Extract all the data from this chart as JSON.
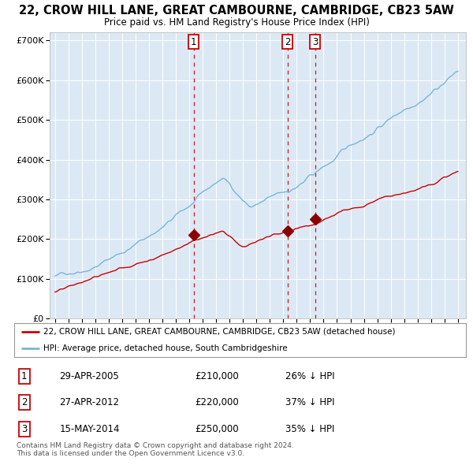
{
  "title": "22, CROW HILL LANE, GREAT CAMBOURNE, CAMBRIDGE, CB23 5AW",
  "subtitle": "Price paid vs. HM Land Registry's House Price Index (HPI)",
  "title_fontsize": 10.5,
  "subtitle_fontsize": 8.5,
  "plot_bg_color": "#dce9f5",
  "ylim": [
    0,
    720000
  ],
  "yticks": [
    0,
    100000,
    200000,
    300000,
    400000,
    500000,
    600000,
    700000
  ],
  "ytick_labels": [
    "£0",
    "£100K",
    "£200K",
    "£300K",
    "£400K",
    "£500K",
    "£600K",
    "£700K"
  ],
  "hpi_color": "#7ab4d8",
  "price_color": "#cc0000",
  "sale_marker_color": "#8b0000",
  "vline_color": "#cc0000",
  "grid_color": "#ffffff",
  "legend_label_price": "22, CROW HILL LANE, GREAT CAMBOURNE, CAMBRIDGE, CB23 5AW (detached house)",
  "legend_label_hpi": "HPI: Average price, detached house, South Cambridgeshire",
  "footer_text": "Contains HM Land Registry data © Crown copyright and database right 2024.\nThis data is licensed under the Open Government Licence v3.0.",
  "sales": [
    {
      "num": 1,
      "date_label": "29-APR-2005",
      "price": 210000,
      "pct": "26%",
      "x_year": 2005.32
    },
    {
      "num": 2,
      "date_label": "27-APR-2012",
      "price": 220000,
      "pct": "37%",
      "x_year": 2012.32
    },
    {
      "num": 3,
      "date_label": "15-MAY-2014",
      "price": 250000,
      "pct": "35%",
      "x_year": 2014.37
    }
  ],
  "xtick_years": [
    1995,
    1996,
    1997,
    1998,
    1999,
    2000,
    2001,
    2002,
    2003,
    2004,
    2005,
    2006,
    2007,
    2008,
    2009,
    2010,
    2011,
    2012,
    2013,
    2014,
    2015,
    2016,
    2017,
    2018,
    2019,
    2020,
    2021,
    2022,
    2023,
    2024,
    2025
  ]
}
